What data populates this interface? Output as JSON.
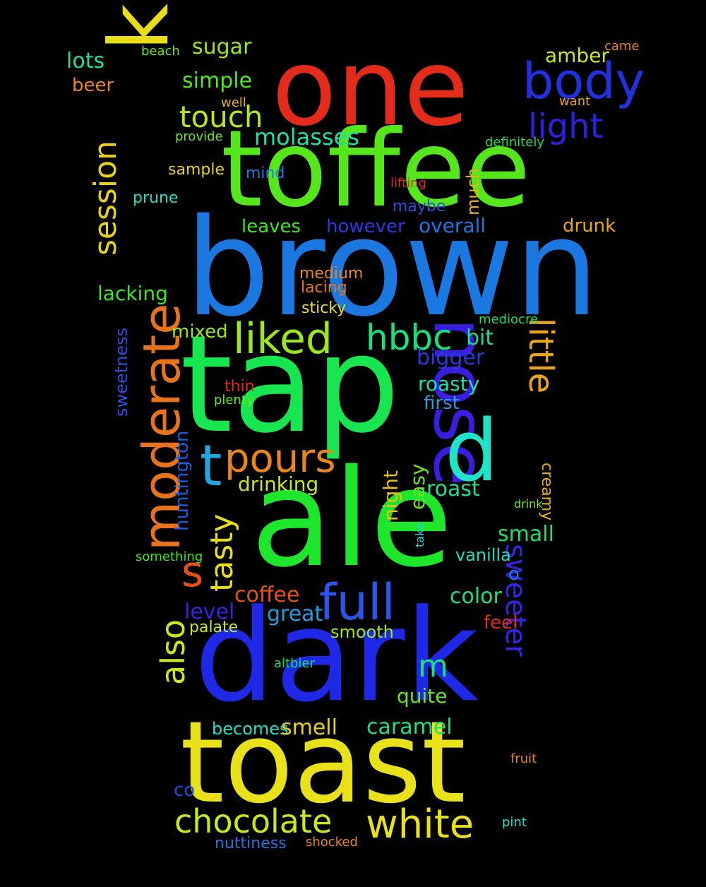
{
  "word_cloud": {
    "background": "#000000",
    "words": {
      "one": "one",
      "toffee": "toffee",
      "brown": "brown",
      "know": "know",
      "body": "body",
      "light": "light",
      "tap": "tap",
      "ale": "ale",
      "dark": "dark",
      "toast": "toast",
      "nose": "nose",
      "d": "d",
      "moderate": "moderate",
      "session": "session",
      "little": "little",
      "sweeter": "sweeter",
      "tasty": "tasty",
      "also": "also",
      "huntington": "huntington",
      "sweetness": "sweetness",
      "night": "night",
      "easy": "easy",
      "much": "much",
      "creamy": "creamy",
      "take": "take",
      "liked": "liked",
      "hbbc": "hbbc",
      "pours": "pours",
      "t": "t",
      "s": "s",
      "full": "full",
      "m": "m",
      "touch": "touch",
      "molasses": "molasses",
      "sugar": "sugar",
      "simple": "simple",
      "lots": "lots",
      "beer": "beer",
      "beach": "beach",
      "amber": "amber",
      "came": "came",
      "well": "well",
      "want": "want",
      "provide": "provide",
      "definitely": "definitely",
      "sample": "sample",
      "mind": "mind",
      "lifting": "lifting",
      "prune": "prune",
      "maybe": "maybe",
      "leaves": "leaves",
      "however": "however",
      "overall": "overall",
      "drunk": "drunk",
      "lacking": "lacking",
      "medium": "medium",
      "lacing": "lacing",
      "sticky": "sticky",
      "mediocre": "mediocre",
      "mixed": "mixed",
      "bit": "bit",
      "bigger": "bigger",
      "roasty": "roasty",
      "thin": "thin",
      "plenty": "plenty",
      "first": "first",
      "drinking": "drinking",
      "roast": "roast",
      "drink": "drink",
      "small": "small",
      "vanilla": "vanilla",
      "something": "something",
      "o": "o",
      "coffee": "coffee",
      "color": "color",
      "level": "level",
      "great": "great",
      "feel": "feel",
      "palate": "palate",
      "smooth": "smooth",
      "altbier": "altbier",
      "quite": "quite",
      "becomes": "becomes",
      "smell": "smell",
      "caramel": "caramel",
      "fruit": "fruit",
      "co": "co",
      "chocolate": "chocolate",
      "white": "white",
      "pint": "pint",
      "nuttiness": "nuttiness",
      "shocked": "shocked"
    }
  }
}
